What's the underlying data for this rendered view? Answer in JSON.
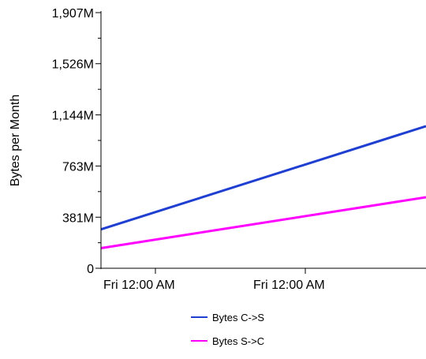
{
  "chart_data": {
    "type": "line",
    "title": "",
    "xlabel": "",
    "ylabel": "Bytes per Month",
    "ylim": [
      0,
      1907
    ],
    "y_ticks": [
      0,
      381,
      763,
      1144,
      1526,
      1907
    ],
    "y_tick_labels": [
      "0",
      "381M",
      "763M",
      "1,144M",
      "1,526M",
      "1,907M"
    ],
    "x_tick_labels": [
      "Fri 12:00 AM",
      "Fri 12:00 AM"
    ],
    "grid": false,
    "legend_position": "bottom",
    "series": [
      {
        "name": "Bytes C->S",
        "color": "#1f3fd0",
        "x": [
          0,
          1
        ],
        "values": [
          290,
          1060
        ]
      },
      {
        "name": "Bytes S->C",
        "color": "#ff00ff",
        "x": [
          0,
          1
        ],
        "values": [
          150,
          530
        ]
      }
    ]
  }
}
